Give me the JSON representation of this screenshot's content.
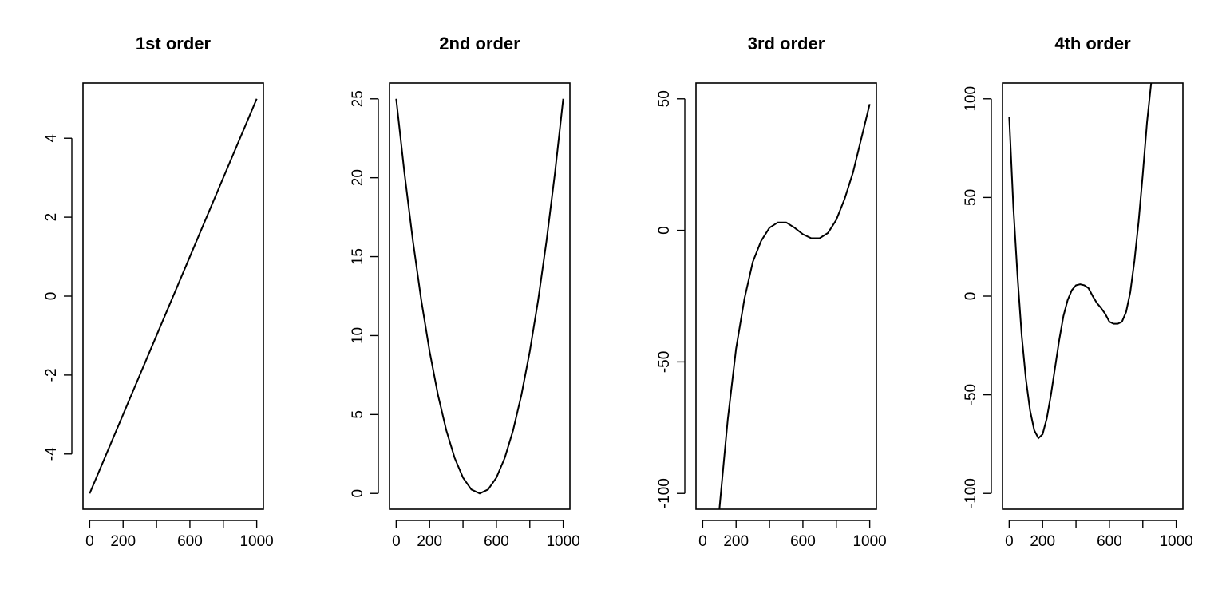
{
  "chart_data": [
    {
      "type": "line",
      "title": "1st order",
      "xlabel": "",
      "ylabel": "",
      "xlim": [
        -40,
        1040
      ],
      "ylim": [
        -5.4,
        5.4
      ],
      "x_ticks": [
        0,
        200,
        400,
        600,
        800,
        1000
      ],
      "x_tick_labels": [
        "0",
        "200",
        "",
        "600",
        "",
        "1000"
      ],
      "y_ticks": [
        -4,
        -2,
        0,
        2,
        4
      ],
      "y_tick_labels": [
        "-4",
        "-2",
        "0",
        "2",
        "4"
      ],
      "series": [
        {
          "x": [
            0,
            100,
            200,
            300,
            400,
            500,
            600,
            700,
            800,
            900,
            1000
          ],
          "y": [
            -5,
            -4,
            -3,
            -2,
            -1,
            0,
            1,
            2,
            3,
            4,
            5
          ]
        }
      ]
    },
    {
      "type": "line",
      "title": "2nd order",
      "xlabel": "",
      "ylabel": "",
      "xlim": [
        -40,
        1040
      ],
      "ylim": [
        -1,
        26
      ],
      "x_ticks": [
        0,
        200,
        400,
        600,
        800,
        1000
      ],
      "x_tick_labels": [
        "0",
        "200",
        "",
        "600",
        "",
        "1000"
      ],
      "y_ticks": [
        0,
        5,
        10,
        15,
        20,
        25
      ],
      "y_tick_labels": [
        "0",
        "5",
        "10",
        "15",
        "20",
        "25"
      ],
      "series": [
        {
          "x": [
            0,
            50,
            100,
            150,
            200,
            250,
            300,
            350,
            400,
            450,
            500,
            550,
            600,
            650,
            700,
            750,
            800,
            850,
            900,
            950,
            1000
          ],
          "y": [
            25,
            20.25,
            16,
            12.25,
            9,
            6.25,
            4,
            2.25,
            1,
            0.25,
            0,
            0.25,
            1,
            2.25,
            4,
            6.25,
            9,
            12.25,
            16,
            20.25,
            25
          ]
        }
      ]
    },
    {
      "type": "line",
      "title": "3rd order",
      "xlabel": "",
      "ylabel": "",
      "xlim": [
        -40,
        1040
      ],
      "ylim": [
        -106,
        56
      ],
      "x_ticks": [
        0,
        200,
        400,
        600,
        800,
        1000
      ],
      "x_tick_labels": [
        "0",
        "200",
        "",
        "600",
        "",
        "1000"
      ],
      "y_ticks": [
        -100,
        -50,
        0,
        50
      ],
      "y_tick_labels": [
        "-100",
        "-50",
        "0",
        "50"
      ],
      "series": [
        {
          "x": [
            100,
            150,
            200,
            250,
            300,
            350,
            400,
            450,
            500,
            550,
            600,
            650,
            700,
            750,
            800,
            850,
            900,
            950,
            1000
          ],
          "y": [
            -106,
            -72,
            -45,
            -26,
            -12,
            -4,
            1,
            3,
            3,
            1,
            -1.5,
            -3,
            -3,
            -1,
            4,
            12,
            22,
            35,
            48
          ]
        }
      ]
    },
    {
      "type": "line",
      "title": "4th order",
      "xlabel": "",
      "ylabel": "",
      "xlim": [
        -40,
        1040
      ],
      "ylim": [
        -108,
        108
      ],
      "x_ticks": [
        0,
        200,
        400,
        600,
        800,
        1000
      ],
      "x_tick_labels": [
        "0",
        "200",
        "",
        "600",
        "",
        "1000"
      ],
      "y_ticks": [
        -100,
        -50,
        0,
        50,
        100
      ],
      "y_tick_labels": [
        "-100",
        "-50",
        "0",
        "50",
        "100"
      ],
      "series": [
        {
          "x": [
            0,
            25,
            50,
            75,
            100,
            125,
            150,
            175,
            200,
            225,
            250,
            275,
            300,
            325,
            350,
            375,
            400,
            425,
            450,
            475,
            500,
            525,
            550,
            575,
            600,
            625,
            650,
            675,
            700,
            725,
            750,
            775,
            800,
            825,
            850
          ],
          "y": [
            91,
            45,
            10,
            -20,
            -42,
            -58,
            -68,
            -72,
            -70,
            -62,
            -50,
            -36,
            -22,
            -10,
            -2,
            3,
            5.5,
            6,
            5.5,
            4,
            0,
            -3.5,
            -6,
            -9,
            -13,
            -14,
            -14,
            -13,
            -8,
            2,
            18,
            38,
            62,
            88,
            108
          ]
        }
      ]
    }
  ]
}
